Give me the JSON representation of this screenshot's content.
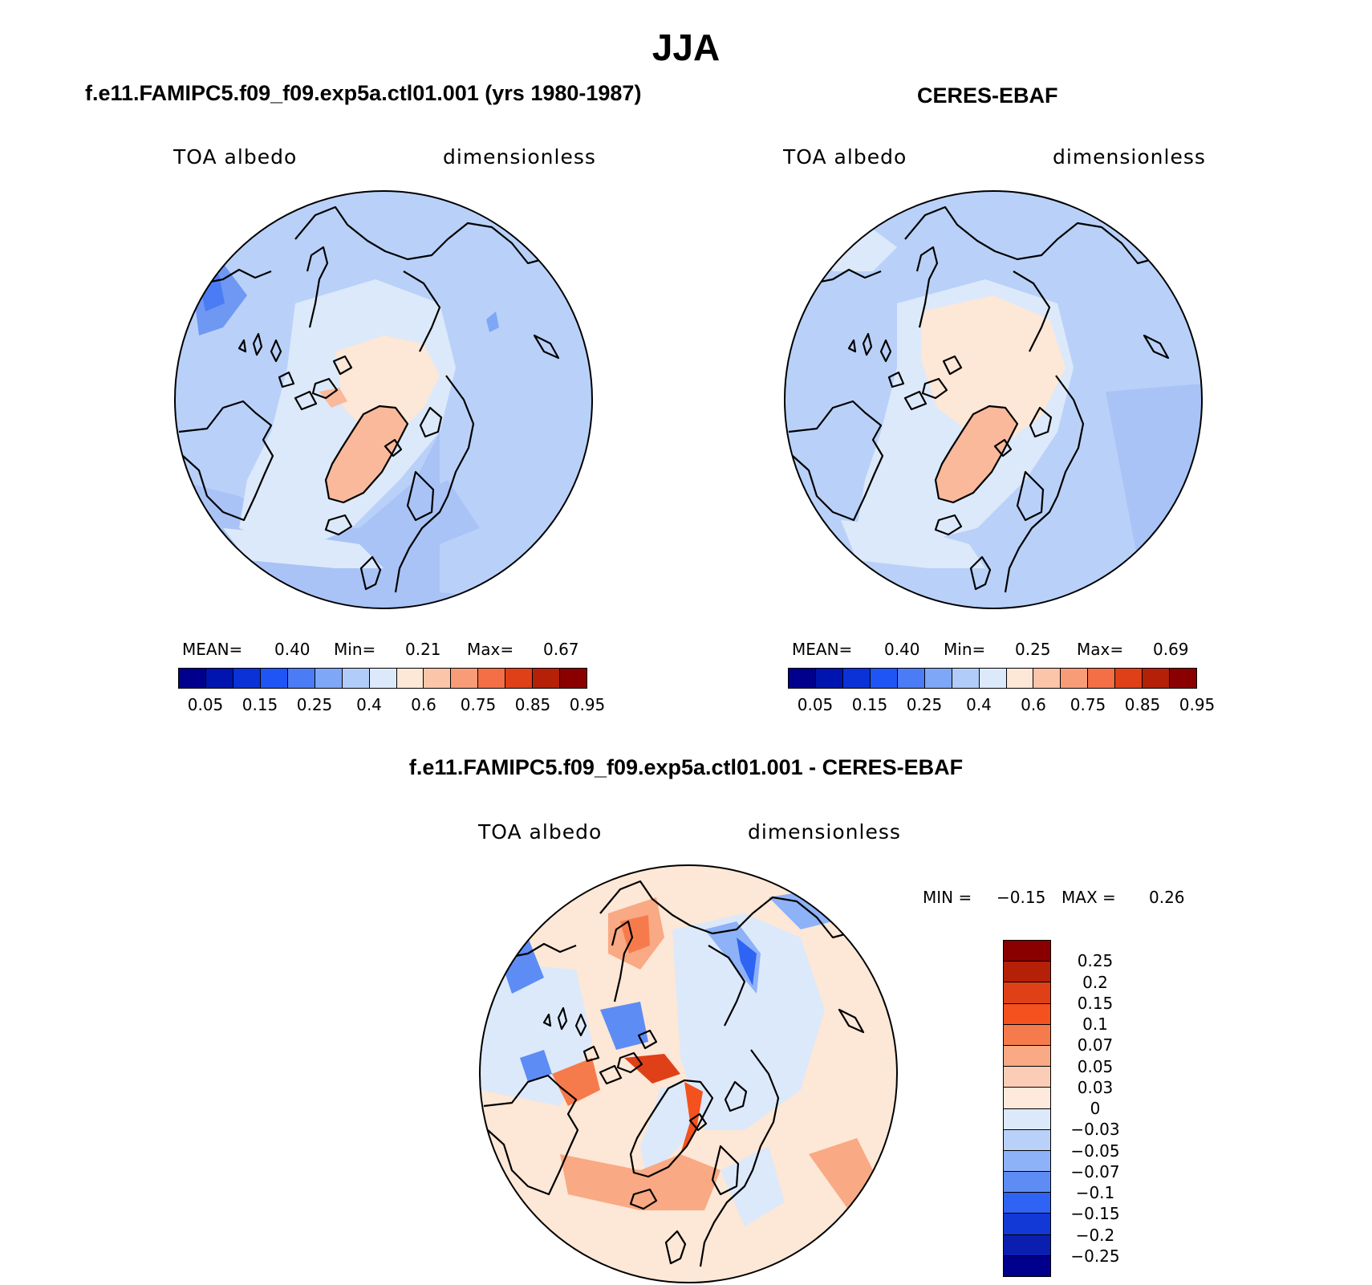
{
  "figure": {
    "title": "JJA"
  },
  "panels": {
    "model": {
      "title": "f.e11.FAMIPC5.f09_f09.exp5a.ctl01.001 (yrs 1980-1987)",
      "variable": "TOA albedo",
      "units": "dimensionless",
      "mean_label": "MEAN=",
      "mean": "0.40",
      "min_label": "Min=",
      "min": "0.21",
      "max_label": "Max=",
      "max": "0.67"
    },
    "obs": {
      "title": "CERES-EBAF",
      "variable": "TOA albedo",
      "units": "dimensionless",
      "mean_label": "MEAN=",
      "mean": "0.40",
      "min_label": "Min=",
      "min": "0.25",
      "max_label": "Max=",
      "max": "0.69"
    },
    "diff": {
      "title": "f.e11.FAMIPC5.f09_f09.exp5a.ctl01.001 - CERES-EBAF",
      "variable": "TOA albedo",
      "units": "dimensionless",
      "min_label": "MIN =",
      "min": "−0.15",
      "max_label": "MAX =",
      "max": "0.26"
    }
  },
  "colorbars": {
    "abs_labels": [
      "0.05",
      "0.15",
      "0.25",
      "0.4",
      "0.6",
      "0.75",
      "0.85",
      "0.95"
    ],
    "abs_colors": [
      "#00008c",
      "#0015b0",
      "#0a32d6",
      "#2055f5",
      "#4b7cf5",
      "#7fa7f7",
      "#b2ccf9",
      "#dce9fa",
      "#fde7d6",
      "#fbc5aa",
      "#f89c78",
      "#f46e46",
      "#e04018",
      "#b52008",
      "#8a0000"
    ],
    "diff_labels": [
      "0.25",
      "0.2",
      "0.15",
      "0.1",
      "0.07",
      "0.05",
      "0.03",
      "0",
      "−0.03",
      "−0.05",
      "−0.07",
      "−0.1",
      "−0.15",
      "−0.2",
      "−0.25"
    ],
    "diff_colors": [
      "#8a0000",
      "#b52008",
      "#e04018",
      "#f4511e",
      "#f67b4c",
      "#f9a983",
      "#fccdb6",
      "#fdeadd",
      "#dce9fa",
      "#b9d1f9",
      "#8eb2f7",
      "#5d8cf5",
      "#2e63f3",
      "#1238d6",
      "#0a1fb0",
      "#00008c"
    ]
  },
  "chart_data": {
    "type": "heatmap",
    "title": "JJA",
    "projection": "north polar stereographic",
    "panels": [
      {
        "name": "f.e11.FAMIPC5.f09_f09.exp5a.ctl01.001 (yrs 1980-1987)",
        "mean": 0.4,
        "min": 0.21,
        "max": 0.67
      },
      {
        "name": "CERES-EBAF",
        "mean": 0.4,
        "min": 0.25,
        "max": 0.69
      },
      {
        "name": "f.e11.FAMIPC5.f09_f09.exp5a.ctl01.001 - CERES-EBAF",
        "min": -0.15,
        "max": 0.26
      }
    ],
    "abs_levels": [
      0.05,
      0.1,
      0.15,
      0.2,
      0.25,
      0.3,
      0.4,
      0.5,
      0.6,
      0.7,
      0.75,
      0.8,
      0.85,
      0.9,
      0.95
    ],
    "diff_levels": [
      -0.25,
      -0.2,
      -0.15,
      -0.1,
      -0.07,
      -0.05,
      -0.03,
      0,
      0.03,
      0.05,
      0.07,
      0.1,
      0.15,
      0.2,
      0.25
    ]
  }
}
